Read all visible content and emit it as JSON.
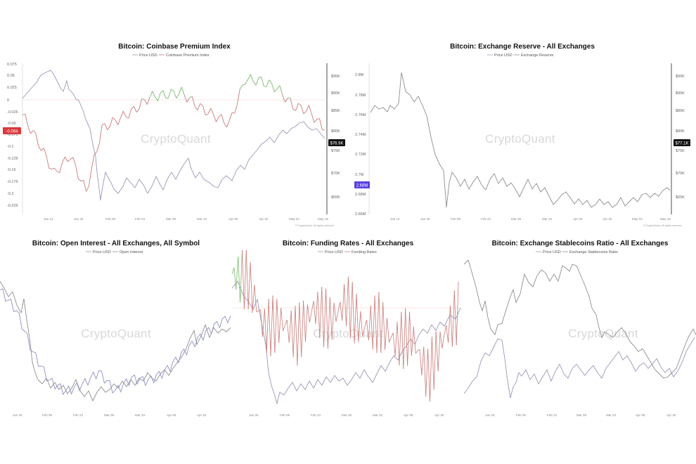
{
  "charts": [
    {
      "title": "Bitcoin: Coinbase Premium Index",
      "legend": [
        "Price USD",
        "Coinbase Premium Index"
      ],
      "watermark": "CryptoQuant",
      "copyright": "© CryptoQuant. All rights reserved",
      "left_ticks": [
        "0.075",
        "0.05",
        "0.025",
        "0",
        "-0.025",
        "-0.05",
        "-0.075",
        "-0.1",
        "-0.125",
        "-0.15",
        "-0.175",
        "-0.2",
        "-0.225"
      ],
      "right_ticks": [
        "$95K",
        "$90K",
        "$85K",
        "$80K",
        "$75K",
        "$70K",
        "$65K"
      ],
      "x_ticks": [
        "Jan 12",
        "Jan 26",
        "Feb 09",
        "Feb 23",
        "Mar 09",
        "Mar 23",
        "Apr 06",
        "Apr 20",
        "May 04",
        "May 18"
      ],
      "left_badge": "-0.064",
      "right_badge": "$76.9K"
    },
    {
      "title": "Bitcoin: Exchange Reserve - All Exchanges",
      "legend": [
        "Price USD",
        "Exchange Reserve"
      ],
      "watermark": "CryptoQuant",
      "copyright": "© CryptoQuant. All rights reserved",
      "left_ticks": [
        "2.8M",
        "2.78M",
        "2.76M",
        "2.74M",
        "2.72M",
        "2.7M",
        "2.68M",
        "2.66M"
      ],
      "right_ticks": [
        "$95K",
        "$90K",
        "$85K",
        "$80K",
        "$75K",
        "$70K",
        "$65K"
      ],
      "x_ticks": [
        "Jan 12",
        "Jan 26",
        "Feb 09",
        "Feb 23",
        "Mar 09",
        "Mar 23",
        "Apr 06",
        "Apr 20",
        "May 04",
        "May 18"
      ],
      "left_badge": "2.68M",
      "right_badge": "$77.1K"
    },
    {
      "title": "Bitcoin: Open Interest - All Exchanges, All Symbol",
      "legend": [
        "Price USD",
        "Open Interest"
      ],
      "watermark": "CryptoQuant",
      "x_ticks": [
        "Jan 26",
        "Feb 09",
        "Feb 23",
        "Mar 09",
        "Mar 23",
        "Apr 06",
        "Apr 20"
      ]
    },
    {
      "title": "Bitcoin: Funding Rates - All Exchanges",
      "legend": [
        "Price USD",
        "Funding Rates"
      ],
      "watermark": "CryptoQuant",
      "x_ticks": [
        "Jan 26",
        "Feb 09",
        "Feb 23",
        "Mar 09",
        "Mar 23",
        "Apr 06",
        "Apr 20"
      ]
    },
    {
      "title": "Bitcoin: Exchange Stablecoins Ratio - All Exchanges",
      "legend": [
        "Price USD",
        "Exchange Stablecoins Ratio"
      ],
      "watermark": "CryptoQuant",
      "x_ticks": [
        "Jan 26",
        "Feb 09",
        "Feb 23",
        "Mar 09",
        "Mar 23",
        "Apr 06",
        "Apr 20"
      ]
    }
  ],
  "colors": {
    "price": "#9a98b8",
    "metric_pos": "#79b86b",
    "metric_neg": "#c97b78",
    "neutral": "#8e8e8e",
    "badge_red": "#d9393b",
    "badge_blue": "#5b3fe0",
    "badge_dark": "#111111"
  },
  "chart_data": [
    {
      "type": "line",
      "title": "Bitcoin: Coinbase Premium Index",
      "x": [
        "Jan 05",
        "Jan 12",
        "Jan 19",
        "Jan 26",
        "Feb 02",
        "Feb 09",
        "Feb 16",
        "Feb 23",
        "Mar 02",
        "Mar 09",
        "Mar 16",
        "Mar 23",
        "Mar 30",
        "Apr 06",
        "Apr 13",
        "Apr 20",
        "Apr 27",
        "May 04",
        "May 11",
        "May 18"
      ],
      "ylim_left": [
        -0.235,
        0.08
      ],
      "ylim_right": [
        60,
        98
      ],
      "series": [
        {
          "name": "Price USD",
          "axis": "right",
          "values": [
            91,
            94,
            97,
            95,
            86,
            79,
            61,
            64,
            66,
            68,
            67,
            70,
            72,
            69,
            72,
            74,
            75,
            79,
            80,
            77
          ]
        },
        {
          "name": "Coinbase Premium Index",
          "axis": "left",
          "values": [
            -0.03,
            -0.09,
            -0.16,
            -0.12,
            -0.2,
            -0.06,
            -0.04,
            -0.02,
            0.01,
            0.015,
            0.02,
            -0.01,
            -0.03,
            -0.05,
            0.05,
            0.045,
            0.03,
            -0.01,
            -0.02,
            -0.064
          ]
        }
      ]
    },
    {
      "type": "line",
      "title": "Bitcoin: Exchange Reserve - All Exchanges",
      "x": [
        "Jan 05",
        "Jan 12",
        "Jan 19",
        "Jan 26",
        "Feb 02",
        "Feb 09",
        "Feb 16",
        "Feb 23",
        "Mar 02",
        "Mar 09",
        "Mar 16",
        "Mar 23",
        "Mar 30",
        "Apr 06",
        "Apr 13",
        "Apr 20",
        "Apr 27",
        "May 04",
        "May 11",
        "May 18"
      ],
      "ylim_left": [
        2.655,
        2.805
      ],
      "ylim_right": [
        60,
        98
      ],
      "series": [
        {
          "name": "Price USD",
          "axis": "right",
          "values": [
            90,
            94,
            97,
            93,
            88,
            94,
            95,
            92,
            86,
            82,
            80,
            78,
            75,
            74,
            74,
            73,
            72,
            76,
            79,
            77
          ]
        },
        {
          "name": "Exchange Reserve",
          "axis": "left",
          "values": [
            2.765,
            2.77,
            2.765,
            2.77,
            2.77,
            2.77,
            2.7,
            2.69,
            2.685,
            2.69,
            2.7,
            2.695,
            2.69,
            2.69,
            2.685,
            2.675,
            2.67,
            2.675,
            2.675,
            2.68
          ]
        }
      ]
    },
    {
      "type": "line",
      "title": "Bitcoin: Open Interest - All Exchanges, All Symbol",
      "x": [
        "Jan 19",
        "Jan 26",
        "Feb 02",
        "Feb 09",
        "Feb 16",
        "Feb 23",
        "Mar 02",
        "Mar 09",
        "Mar 16",
        "Mar 23",
        "Mar 30",
        "Apr 06",
        "Apr 13",
        "Apr 20",
        "Apr 27"
      ],
      "ylim": [
        0,
        1
      ],
      "series": [
        {
          "name": "Price USD",
          "values": [
            0.92,
            0.78,
            0.5,
            0.2,
            0.15,
            0.2,
            0.23,
            0.18,
            0.2,
            0.22,
            0.28,
            0.35,
            0.55,
            0.65,
            0.7
          ]
        },
        {
          "name": "Open Interest",
          "values": [
            0.88,
            0.72,
            0.4,
            0.18,
            0.1,
            0.15,
            0.25,
            0.1,
            0.2,
            0.18,
            0.25,
            0.38,
            0.5,
            0.6,
            0.68
          ]
        }
      ]
    },
    {
      "type": "line",
      "title": "Bitcoin: Funding Rates - All Exchanges",
      "x": [
        "Jan 19",
        "Jan 26",
        "Feb 02",
        "Feb 09",
        "Feb 16",
        "Feb 23",
        "Mar 02",
        "Mar 09",
        "Mar 16",
        "Mar 23",
        "Mar 30",
        "Apr 06",
        "Apr 13",
        "Apr 20",
        "Apr 27"
      ],
      "ylim": [
        0,
        1
      ],
      "series": [
        {
          "name": "Price USD",
          "values": [
            0.95,
            0.88,
            0.2,
            0.15,
            0.22,
            0.25,
            0.2,
            0.22,
            0.25,
            0.2,
            0.28,
            0.35,
            0.45,
            0.55,
            0.6
          ]
        },
        {
          "name": "Funding Rates",
          "values": [
            0.95,
            0.9,
            0.55,
            0.6,
            0.5,
            0.7,
            0.6,
            0.75,
            0.55,
            0.6,
            0.45,
            0.5,
            0.2,
            0.5,
            0.7
          ]
        }
      ]
    },
    {
      "type": "line",
      "title": "Bitcoin: Exchange Stablecoins Ratio - All Exchanges",
      "x": [
        "Jan 19",
        "Jan 26",
        "Feb 02",
        "Feb 09",
        "Feb 16",
        "Feb 23",
        "Mar 02",
        "Mar 09",
        "Mar 16",
        "Mar 23",
        "Mar 30",
        "Apr 06",
        "Apr 13",
        "Apr 20",
        "Apr 27"
      ],
      "ylim": [
        0,
        1
      ],
      "series": [
        {
          "name": "Price USD",
          "values": [
            0.92,
            0.8,
            0.55,
            0.3,
            0.22,
            0.25,
            0.28,
            0.25,
            0.22,
            0.3,
            0.35,
            0.4,
            0.5,
            0.55,
            0.6
          ]
        },
        {
          "name": "Exchange Stablecoins Ratio",
          "values": [
            0.15,
            0.3,
            0.7,
            0.85,
            0.95,
            0.92,
            0.85,
            0.75,
            0.65,
            0.55,
            0.45,
            0.35,
            0.3,
            0.2,
            0.5
          ]
        }
      ]
    }
  ]
}
